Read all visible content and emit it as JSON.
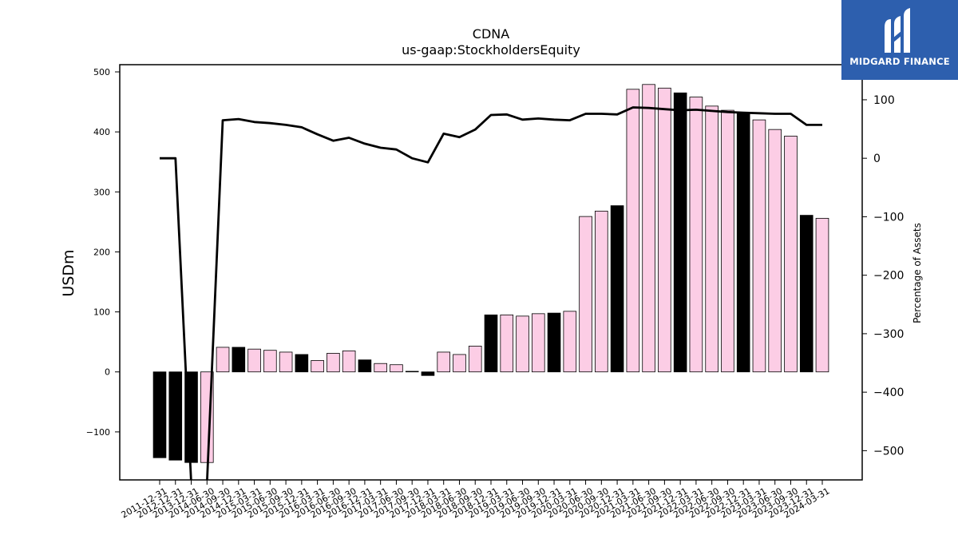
{
  "brand": {
    "name": "MIDGARD FINANCE",
    "logo_icon": "midgard-m-logo-icon",
    "background": "#2d5fae"
  },
  "chart_data": {
    "type": "bar",
    "title": "CDNA",
    "subtitle": "us-gaap:StockholdersEquity",
    "ylabel": "USDm",
    "y2label": "Percentage of Assets",
    "ylim": [
      -180,
      512
    ],
    "y2lim": [
      -550,
      160
    ],
    "yticks": [
      -100,
      0,
      100,
      200,
      300,
      400,
      500
    ],
    "y2ticks": [
      -500,
      -400,
      -300,
      -200,
      -100,
      0,
      100
    ],
    "colors": {
      "annual": "#000000",
      "quarterly": "#fccde5",
      "line": "#000000"
    },
    "categories": [
      "2011-12-31",
      "2012-12-31",
      "2013-12-31",
      "2014-06-30",
      "2014-09-30",
      "2014-12-31",
      "2015-03-31",
      "2015-06-30",
      "2015-09-30",
      "2015-12-31",
      "2016-03-31",
      "2016-06-30",
      "2016-09-30",
      "2016-12-31",
      "2017-03-31",
      "2017-06-30",
      "2017-09-30",
      "2017-12-31",
      "2018-03-31",
      "2018-06-30",
      "2018-09-30",
      "2018-12-31",
      "2019-03-31",
      "2019-06-30",
      "2019-09-30",
      "2019-12-31",
      "2020-03-31",
      "2020-06-30",
      "2020-09-30",
      "2020-12-31",
      "2021-03-31",
      "2021-06-30",
      "2021-09-30",
      "2021-12-31",
      "2022-03-31",
      "2022-06-30",
      "2022-09-30",
      "2022-12-31",
      "2023-03-31",
      "2023-06-30",
      "2023-09-30",
      "2023-12-31",
      "2024-03-31"
    ],
    "series": [
      {
        "kind": "bar",
        "values": [
          -143,
          -147,
          -151,
          -151,
          41,
          41,
          38,
          36,
          33,
          29,
          19,
          31,
          35,
          20,
          14,
          12,
          1,
          -6,
          33,
          29,
          43,
          95,
          95,
          93,
          97,
          98,
          101,
          259,
          268,
          277,
          471,
          479,
          473,
          465,
          458,
          443,
          436,
          431,
          420,
          404,
          393,
          261,
          256
        ],
        "annual": [
          true,
          true,
          true,
          false,
          false,
          true,
          false,
          false,
          false,
          true,
          false,
          false,
          false,
          true,
          false,
          false,
          false,
          true,
          false,
          false,
          false,
          true,
          false,
          false,
          false,
          true,
          false,
          false,
          false,
          true,
          false,
          false,
          false,
          true,
          false,
          false,
          false,
          true,
          false,
          false,
          false,
          true,
          false
        ]
      },
      {
        "kind": "line",
        "axis": "right",
        "values": [
          0,
          0,
          -555,
          -555,
          65,
          67,
          62,
          60,
          57,
          53,
          41,
          30,
          35,
          25,
          18,
          15,
          0,
          -7,
          42,
          36,
          49,
          74,
          75,
          66,
          68,
          66,
          65,
          76,
          76,
          75,
          87,
          86,
          84,
          82,
          83,
          81,
          79,
          78,
          77,
          76,
          76,
          57,
          57
        ]
      }
    ],
    "x_tick_labels": [
      "2011-12-31",
      "2012-12-31",
      "2013-12-31",
      "2014-06-30",
      "2014-09-30",
      "2014-12-31",
      "2015-03-31",
      "2015-06-30",
      "2015-09-30",
      "2015-12-31",
      "2016-03-31",
      "2016-06-30",
      "2016-09-30",
      "2016-12-31",
      "2017-03-31",
      "2017-06-30",
      "2017-09-30",
      "2017-12-31",
      "2018-03-31",
      "2018-06-30",
      "2018-09-30",
      "2018-12-31",
      "2019-03-31",
      "2019-06-30",
      "2019-09-30",
      "2019-12-31",
      "2020-03-31",
      "2020-06-30",
      "2020-09-30",
      "2020-12-31",
      "2021-03-31",
      "2021-06-30",
      "2021-09-30",
      "2021-12-31",
      "2022-03-31",
      "2022-06-30",
      "2022-09-30",
      "2022-12-31",
      "2023-03-31",
      "2023-06-30",
      "2023-09-30",
      "2023-12-31",
      "2024-03-31"
    ],
    "grid": false,
    "legend": "none"
  }
}
